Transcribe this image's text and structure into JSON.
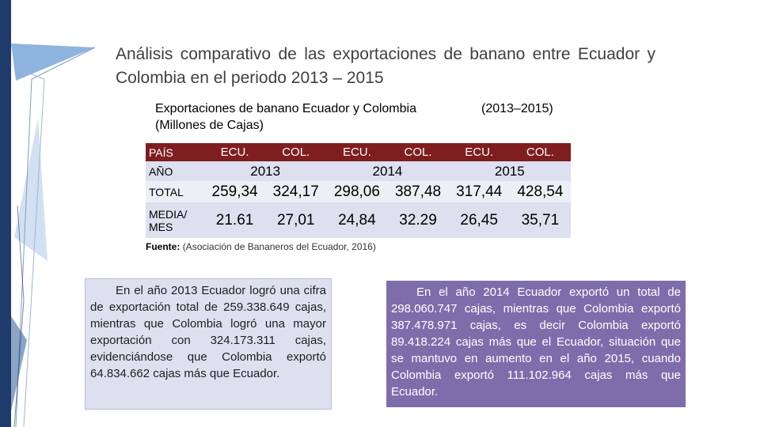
{
  "slide": {
    "title": "Análisis comparativo de las exportaciones de banano entre Ecuador y Colombia en el periodo 2013 – 2015"
  },
  "table": {
    "title_line1": "Exportaciones de banano Ecuador y Colombia",
    "title_years": "(2013–2015)",
    "title_line2": "(Millones de Cajas)",
    "row_headers": {
      "pais": "PAÍS",
      "anio": "AÑO",
      "total": "TOTAL",
      "media": "MEDIA/ MES"
    },
    "country_headers": [
      "ECU.",
      "COL.",
      "ECU.",
      "COL.",
      "ECU.",
      "COL."
    ],
    "years": [
      "2013",
      "2014",
      "2015"
    ],
    "total": [
      "259,34",
      "324,17",
      "298,06",
      "387,48",
      "317,44",
      "428,54"
    ],
    "media": [
      "21.61",
      "27,01",
      "24,84",
      "32.29",
      "26,45",
      "35,71"
    ]
  },
  "source": {
    "label": "Fuente:",
    "text": "(Asociación de Bananeros del Ecuador, 2016)"
  },
  "box_left": {
    "text": "En el año 2013 Ecuador logró una cifra de exportación total de 259.338.649 cajas, mientras que Colombia logró una mayor exportación con 324.173.311 cajas, evidenciándose que Colombia exportó 64.834.662 cajas más que Ecuador."
  },
  "box_right": {
    "text": "En el año 2014 Ecuador exportó un total de 298.060.747 cajas, mientras que Colombia exportó 387.478.971 cajas, es decir Colombia exportó 89.418.224 cajas más que el Ecuador, situación que se mantuvo en aumento en el año 2015, cuando Colombia exportó 111.102.964 cajas más que Ecuador."
  },
  "colors": {
    "band": "#1f3b6b",
    "header_row": "#7f1e1e",
    "row_light": "#dde0ef",
    "box_right": "#7f6cab"
  }
}
